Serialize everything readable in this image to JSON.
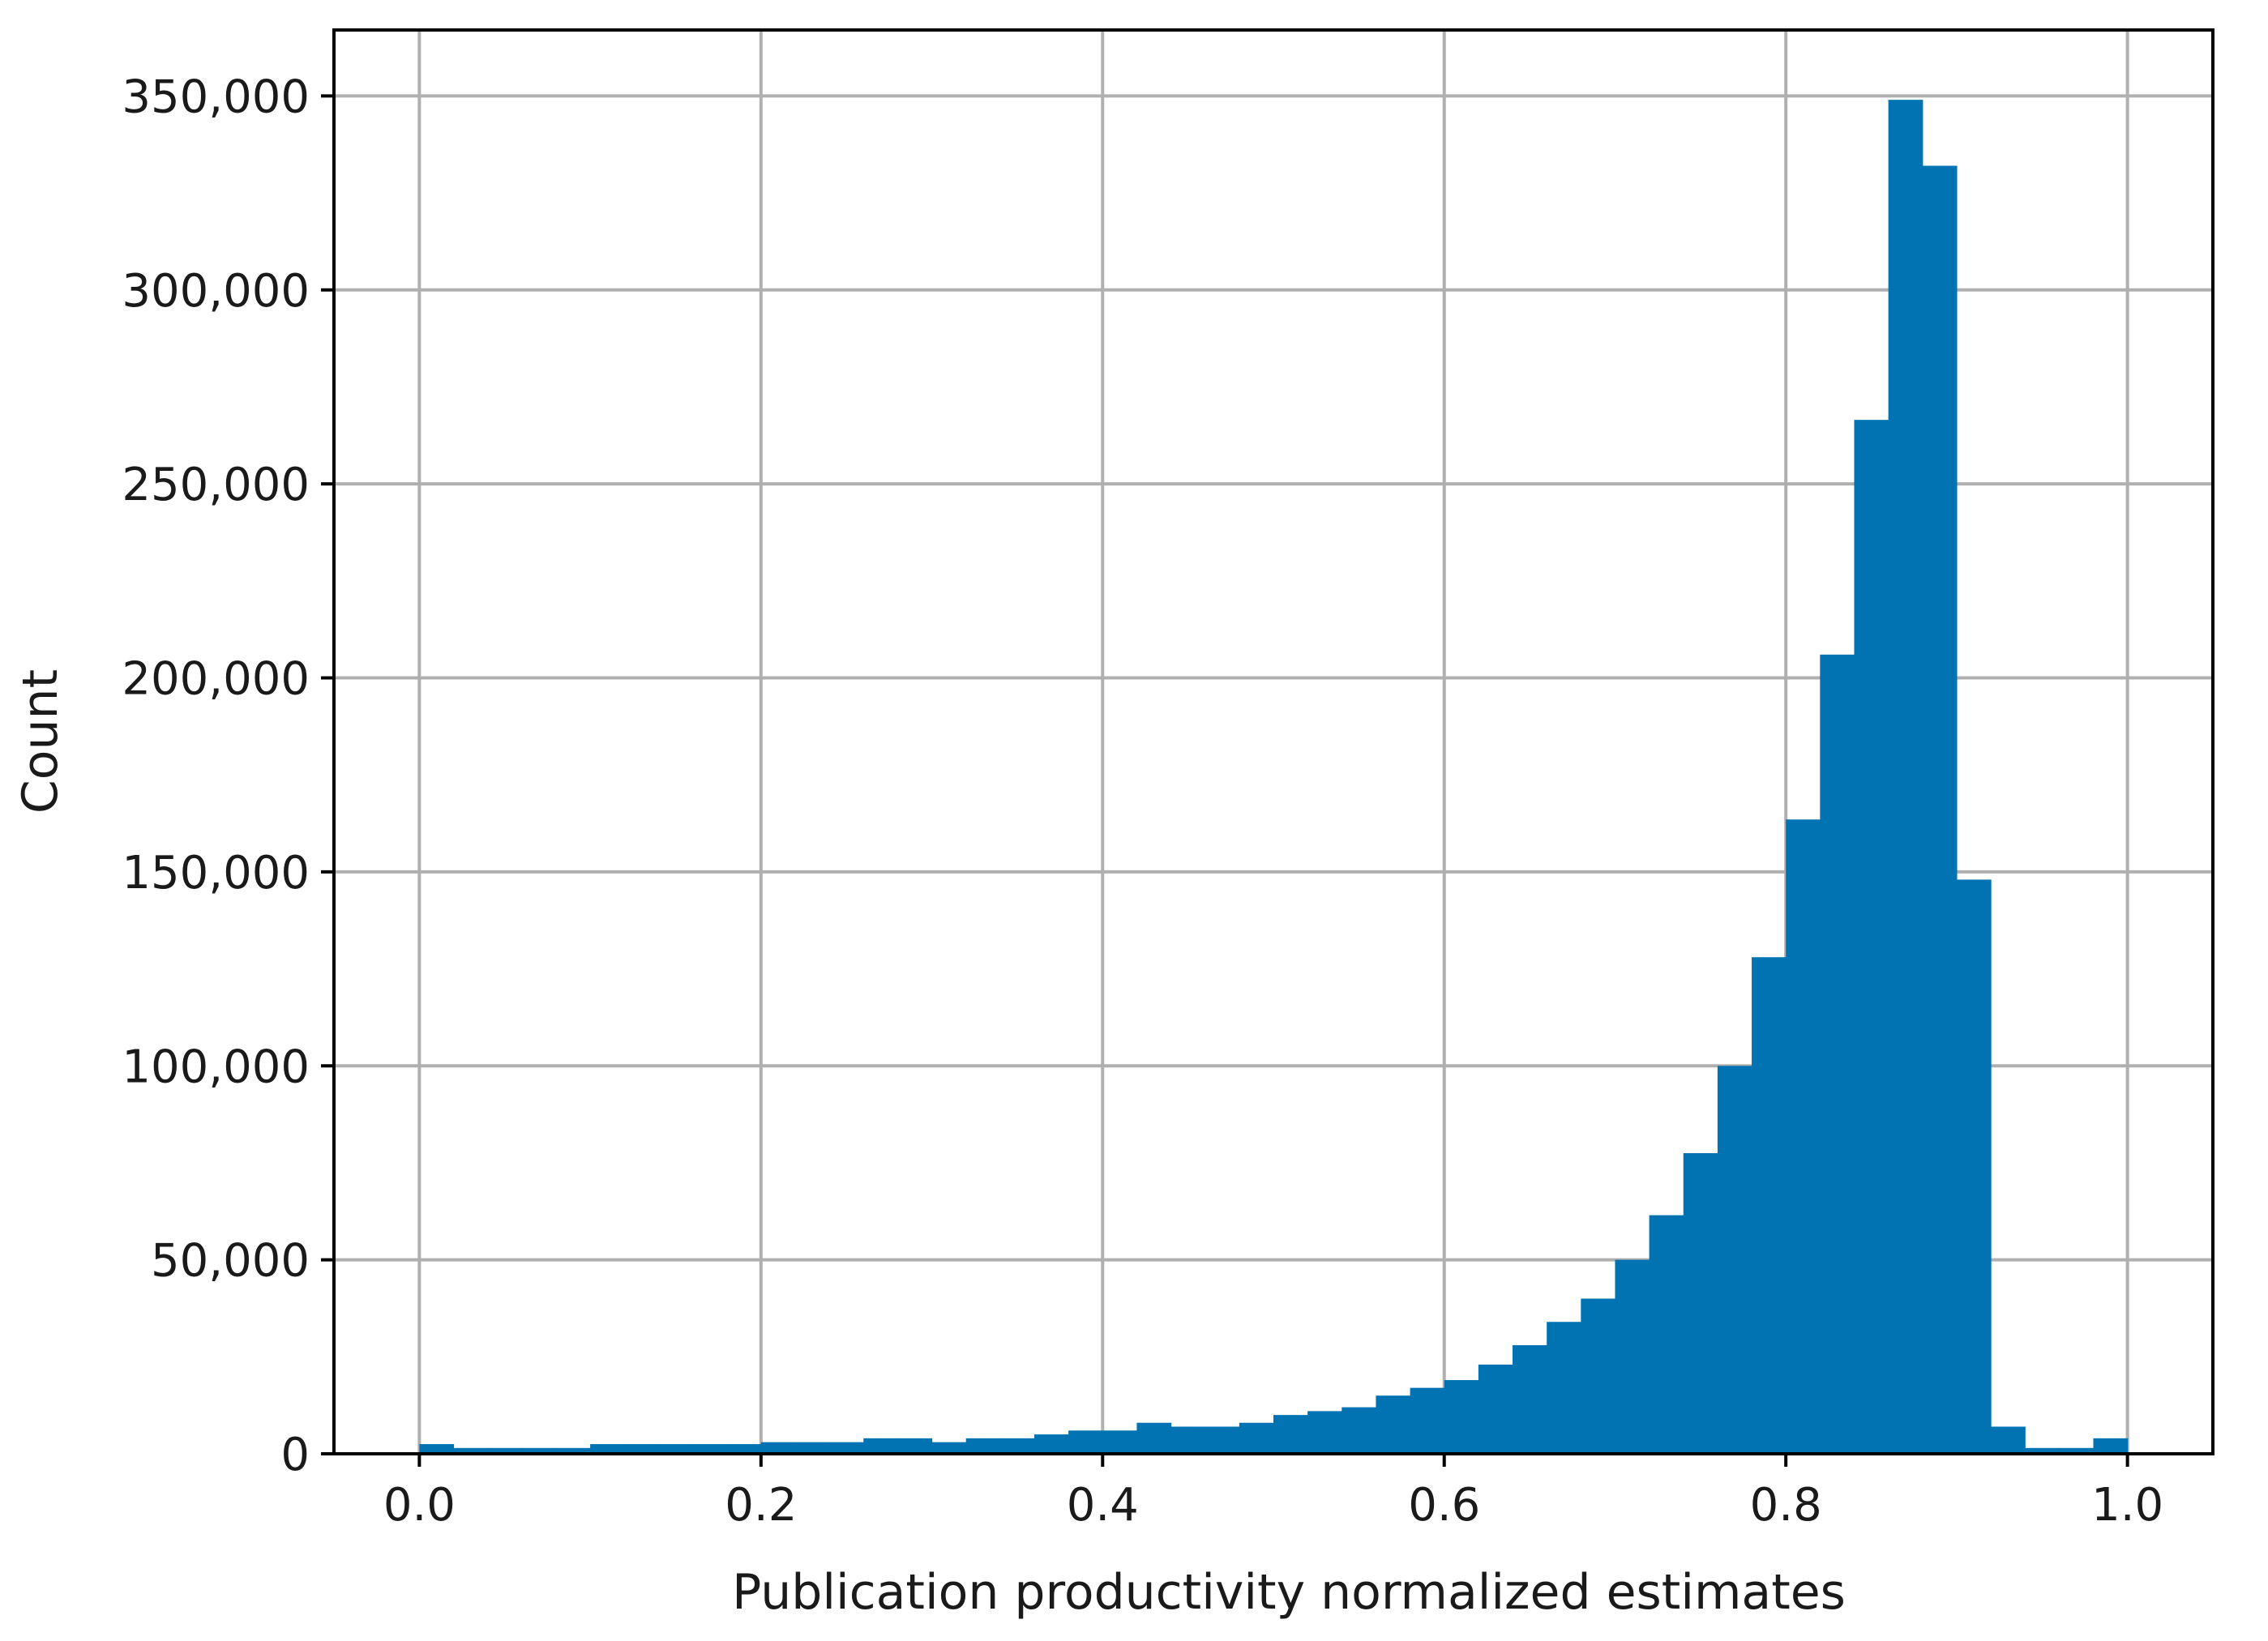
{
  "chart_data": {
    "type": "bar",
    "subtype": "histogram",
    "title": "",
    "xlabel": "Publication productivity normalized estimates",
    "ylabel": "Count",
    "xlim": [
      -0.05,
      1.05
    ],
    "ylim": [
      0,
      367000
    ],
    "grid": true,
    "color": "#0173b2",
    "x_ticks": [
      0.0,
      0.2,
      0.4,
      0.6,
      0.8,
      1.0
    ],
    "x_tick_labels": [
      "0.0",
      "0.2",
      "0.4",
      "0.6",
      "0.8",
      "1.0"
    ],
    "y_ticks": [
      0,
      50000,
      100000,
      150000,
      200000,
      250000,
      300000,
      350000
    ],
    "y_tick_labels": [
      "0",
      "50,000",
      "100,000",
      "150,000",
      "200,000",
      "250,000",
      "300,000",
      "350,000"
    ],
    "bin_range": [
      0.0,
      1.0
    ],
    "bin_width": 0.02,
    "values": [
      2500,
      1500,
      1500,
      1500,
      1500,
      2500,
      2500,
      2500,
      2500,
      2500,
      3000,
      3000,
      3000,
      4000,
      4000,
      3000,
      4000,
      4000,
      5000,
      6000,
      6000,
      8000,
      7000,
      7000,
      8000,
      10000,
      11000,
      12000,
      15000,
      17000,
      19000,
      23000,
      28000,
      34000,
      40000,
      50000,
      61500,
      77500,
      100000,
      128000,
      163500,
      206000,
      266500,
      349000,
      332000,
      148000,
      7000,
      1500,
      1500,
      4000
    ]
  }
}
